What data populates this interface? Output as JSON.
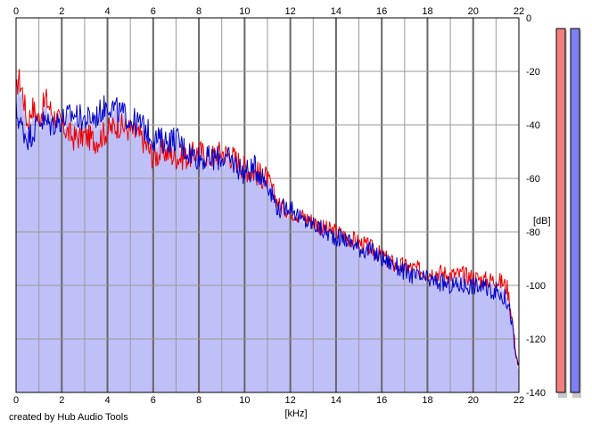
{
  "chart_data": {
    "type": "area",
    "x_unit_label": "[kHz]",
    "y_unit_label": "[dB]",
    "xlim": [
      0,
      22
    ],
    "ylim": [
      -140,
      0
    ],
    "x_ticks": [
      "0",
      "2",
      "4",
      "6",
      "8",
      "10",
      "12",
      "14",
      "16",
      "18",
      "20",
      "22"
    ],
    "y_ticks": [
      "0",
      "-20",
      "-40",
      "-60",
      "-80",
      "-100",
      "-120",
      "-140"
    ],
    "grid": true,
    "colors": {
      "fill": "#c0c0f8",
      "red_series": "#ee0000",
      "blue_series": "#0000cc",
      "grid": "#999999",
      "major_grid": "#666666",
      "meter_red": "#f08080",
      "meter_blue": "#8080f0"
    },
    "series": [
      {
        "color_key": "red_series",
        "points": [
          [
            0,
            -30
          ],
          [
            0.1,
            -22
          ],
          [
            0.3,
            -28
          ],
          [
            0.5,
            -40
          ],
          [
            0.7,
            -33
          ],
          [
            1,
            -38
          ],
          [
            1.3,
            -30
          ],
          [
            1.6,
            -36
          ],
          [
            2,
            -40
          ],
          [
            2.5,
            -45
          ],
          [
            3,
            -44
          ],
          [
            3.5,
            -46
          ],
          [
            4,
            -42
          ],
          [
            4.5,
            -40
          ],
          [
            5,
            -42
          ],
          [
            5.5,
            -45
          ],
          [
            6,
            -52
          ],
          [
            6.5,
            -50
          ],
          [
            7,
            -52
          ],
          [
            7.5,
            -52
          ],
          [
            8,
            -50
          ],
          [
            8.5,
            -52
          ],
          [
            9,
            -50
          ],
          [
            9.5,
            -52
          ],
          [
            10,
            -56
          ],
          [
            10.5,
            -58
          ],
          [
            11,
            -60
          ],
          [
            11.5,
            -70
          ],
          [
            12,
            -72
          ],
          [
            12.5,
            -74
          ],
          [
            13,
            -76
          ],
          [
            13.5,
            -79
          ],
          [
            14,
            -80
          ],
          [
            14.5,
            -82
          ],
          [
            15,
            -84
          ],
          [
            15.5,
            -86
          ],
          [
            16,
            -89
          ],
          [
            16.5,
            -92
          ],
          [
            17,
            -93
          ],
          [
            17.5,
            -94
          ],
          [
            18,
            -95
          ],
          [
            18.5,
            -95
          ],
          [
            19,
            -96
          ],
          [
            19.5,
            -96
          ],
          [
            20,
            -97
          ],
          [
            20.5,
            -98
          ],
          [
            21,
            -98
          ],
          [
            21.3,
            -99
          ],
          [
            21.5,
            -101
          ],
          [
            21.7,
            -112
          ],
          [
            21.85,
            -124
          ],
          [
            22,
            -132
          ]
        ]
      },
      {
        "color_key": "blue_series",
        "points": [
          [
            0,
            -35
          ],
          [
            0.2,
            -40
          ],
          [
            0.5,
            -45
          ],
          [
            0.8,
            -42
          ],
          [
            1,
            -38
          ],
          [
            1.5,
            -40
          ],
          [
            2,
            -38
          ],
          [
            2.5,
            -36
          ],
          [
            3,
            -38
          ],
          [
            3.5,
            -37
          ],
          [
            4,
            -32
          ],
          [
            4.5,
            -35
          ],
          [
            5,
            -38
          ],
          [
            5.5,
            -40
          ],
          [
            6,
            -45
          ],
          [
            6.5,
            -46
          ],
          [
            7,
            -45
          ],
          [
            7.5,
            -50
          ],
          [
            8,
            -52
          ],
          [
            8.5,
            -53
          ],
          [
            9,
            -52
          ],
          [
            9.5,
            -54
          ],
          [
            10,
            -58
          ],
          [
            10.5,
            -56
          ],
          [
            11,
            -62
          ],
          [
            11.5,
            -72
          ],
          [
            12,
            -70
          ],
          [
            12.5,
            -76
          ],
          [
            13,
            -77
          ],
          [
            13.5,
            -80
          ],
          [
            14,
            -82
          ],
          [
            14.5,
            -83
          ],
          [
            15,
            -86
          ],
          [
            15.5,
            -87
          ],
          [
            16,
            -90
          ],
          [
            16.5,
            -92
          ],
          [
            17,
            -95
          ],
          [
            17.5,
            -97
          ],
          [
            18,
            -98
          ],
          [
            18.5,
            -99
          ],
          [
            19,
            -100
          ],
          [
            19.5,
            -100
          ],
          [
            20,
            -100
          ],
          [
            20.5,
            -101
          ],
          [
            21,
            -102
          ],
          [
            21.3,
            -104
          ],
          [
            21.5,
            -106
          ],
          [
            21.7,
            -114
          ],
          [
            21.85,
            -126
          ],
          [
            22,
            -130
          ]
        ]
      }
    ],
    "meters": [
      {
        "color_key": "meter_red",
        "level": 1.0
      },
      {
        "color_key": "meter_blue",
        "level": 1.0
      }
    ]
  },
  "footer": {
    "credit": "created by Hub Audio Tools"
  }
}
